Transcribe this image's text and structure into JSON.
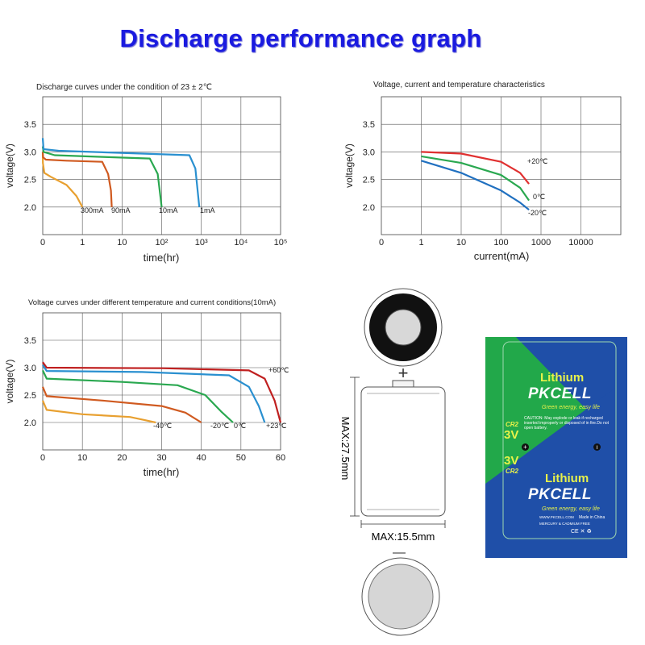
{
  "main_title": "Discharge performance graph",
  "battery": {
    "plus_sign": "+",
    "minus_sign": "—",
    "height_label": "MAX:27.5mm",
    "width_label": "MAX:15.5mm"
  },
  "product": {
    "brand_line1": "Lithium",
    "brand_name": "PKCELL",
    "tagline": "Green energy, easy life",
    "model": "CR2",
    "voltage": "3V",
    "caution_text": "CAUTION: May explode or leak if recharged inserted improperly or disposed of in fire.Do not open battery.",
    "website": "WWW.PKCELL.COM",
    "made_in": "Made in China",
    "free_text": "MERCURY & CADMIUM FREE",
    "marks": "CE ✕ ♻"
  },
  "chart_data": [
    {
      "type": "line",
      "title": "Discharge curves under the condition of 23 ± 2℃",
      "xlabel": "time(hr)",
      "ylabel": "voltage(V)",
      "x_scale": "log",
      "x_ticks": [
        "0",
        "1",
        "10",
        "10²",
        "10³",
        "10⁴",
        "10⁵"
      ],
      "y_ticks": [
        "2.0",
        "2.5",
        "3.0",
        "3.5"
      ],
      "ylim": [
        1.5,
        4.0
      ],
      "grid": true,
      "series": [
        {
          "name": "300mA",
          "color": "#e8a030",
          "points": [
            [
              0.0,
              3.0
            ],
            [
              0.005,
              2.8
            ],
            [
              0.04,
              2.62
            ],
            [
              0.2,
              2.55
            ],
            [
              0.6,
              2.4
            ],
            [
              0.85,
              2.2
            ],
            [
              1.0,
              2.0
            ]
          ]
        },
        {
          "name": "90mA",
          "color": "#d05a20",
          "points": [
            [
              0.0,
              3.0
            ],
            [
              0.01,
              2.9
            ],
            [
              0.08,
              2.86
            ],
            [
              0.6,
              2.84
            ],
            [
              1.5,
              2.82
            ],
            [
              1.65,
              2.6
            ],
            [
              1.72,
              2.3
            ],
            [
              1.74,
              2.0
            ]
          ]
        },
        {
          "name": "10mA",
          "color": "#2aa850",
          "points": [
            [
              0.0,
              3.1
            ],
            [
              0.02,
              3.0
            ],
            [
              0.3,
              2.94
            ],
            [
              1.5,
              2.91
            ],
            [
              2.7,
              2.88
            ],
            [
              2.9,
              2.6
            ],
            [
              3.0,
              2.0
            ]
          ]
        },
        {
          "name": "1mA",
          "color": "#2a90d0",
          "points": [
            [
              0.0,
              3.25
            ],
            [
              0.02,
              3.05
            ],
            [
              0.4,
              3.02
            ],
            [
              2.5,
              2.97
            ],
            [
              3.7,
              2.94
            ],
            [
              3.85,
              2.7
            ],
            [
              3.95,
              2.0
            ]
          ]
        }
      ]
    },
    {
      "type": "line",
      "title": "Voltage, current and temperature characteristics",
      "xlabel": "current(mA)",
      "ylabel": "voltage(V)",
      "x_scale": "log",
      "x_ticks": [
        "0",
        "1",
        "10",
        "100",
        "1000",
        "10000"
      ],
      "y_ticks": [
        "2.0",
        "2.5",
        "3.0",
        "3.5"
      ],
      "ylim": [
        1.5,
        4.0
      ],
      "grid": true,
      "series": [
        {
          "name": "+20℃",
          "color": "#e03030",
          "points": [
            [
              1,
              3.0
            ],
            [
              10,
              2.97
            ],
            [
              100,
              2.82
            ],
            [
              300,
              2.62
            ],
            [
              500,
              2.42
            ]
          ]
        },
        {
          "name": "0℃",
          "color": "#2aa850",
          "points": [
            [
              1,
              2.92
            ],
            [
              10,
              2.8
            ],
            [
              100,
              2.58
            ],
            [
              300,
              2.35
            ],
            [
              500,
              2.12
            ]
          ]
        },
        {
          "name": "-20℃",
          "color": "#2070c0",
          "points": [
            [
              1,
              2.84
            ],
            [
              10,
              2.62
            ],
            [
              100,
              2.3
            ],
            [
              300,
              2.08
            ],
            [
              500,
              1.95
            ]
          ]
        }
      ]
    },
    {
      "type": "line",
      "title": "Voltage curves under different temperature and current conditions(10mA)",
      "xlabel": "time(hr)",
      "ylabel": "voltage(V)",
      "x_scale": "linear",
      "x_ticks": [
        "0",
        "10",
        "20",
        "30",
        "40",
        "50",
        "60"
      ],
      "y_ticks": [
        "2.0",
        "2.5",
        "3.0",
        "3.5"
      ],
      "xlim": [
        0,
        60
      ],
      "ylim": [
        1.5,
        4.0
      ],
      "grid": true,
      "series": [
        {
          "name": "-40℃",
          "color": "#e8a030",
          "points": [
            [
              0,
              2.4
            ],
            [
              1,
              2.23
            ],
            [
              10,
              2.15
            ],
            [
              22,
              2.1
            ],
            [
              26,
              2.04
            ],
            [
              28.5,
              2.0
            ]
          ]
        },
        {
          "name": "-20℃",
          "color": "#d05a20",
          "points": [
            [
              0,
              2.65
            ],
            [
              1,
              2.48
            ],
            [
              15,
              2.4
            ],
            [
              30,
              2.3
            ],
            [
              36,
              2.18
            ],
            [
              40,
              2.0
            ]
          ]
        },
        {
          "name": "0℃",
          "color": "#2aa850",
          "points": [
            [
              0,
              2.95
            ],
            [
              1,
              2.8
            ],
            [
              20,
              2.74
            ],
            [
              34,
              2.68
            ],
            [
              41,
              2.5
            ],
            [
              45,
              2.2
            ],
            [
              48,
              2.0
            ]
          ]
        },
        {
          "name": "+23℃",
          "color": "#2a90d0",
          "points": [
            [
              0,
              3.05
            ],
            [
              1,
              2.94
            ],
            [
              25,
              2.92
            ],
            [
              47,
              2.86
            ],
            [
              52,
              2.65
            ],
            [
              54.5,
              2.3
            ],
            [
              56,
              2.0
            ]
          ]
        },
        {
          "name": "+60℃",
          "color": "#c02020",
          "points": [
            [
              0,
              3.1
            ],
            [
              1,
              3.0
            ],
            [
              30,
              2.99
            ],
            [
              52,
              2.95
            ],
            [
              56,
              2.8
            ],
            [
              58.5,
              2.4
            ],
            [
              60,
              2.0
            ]
          ]
        }
      ]
    }
  ]
}
